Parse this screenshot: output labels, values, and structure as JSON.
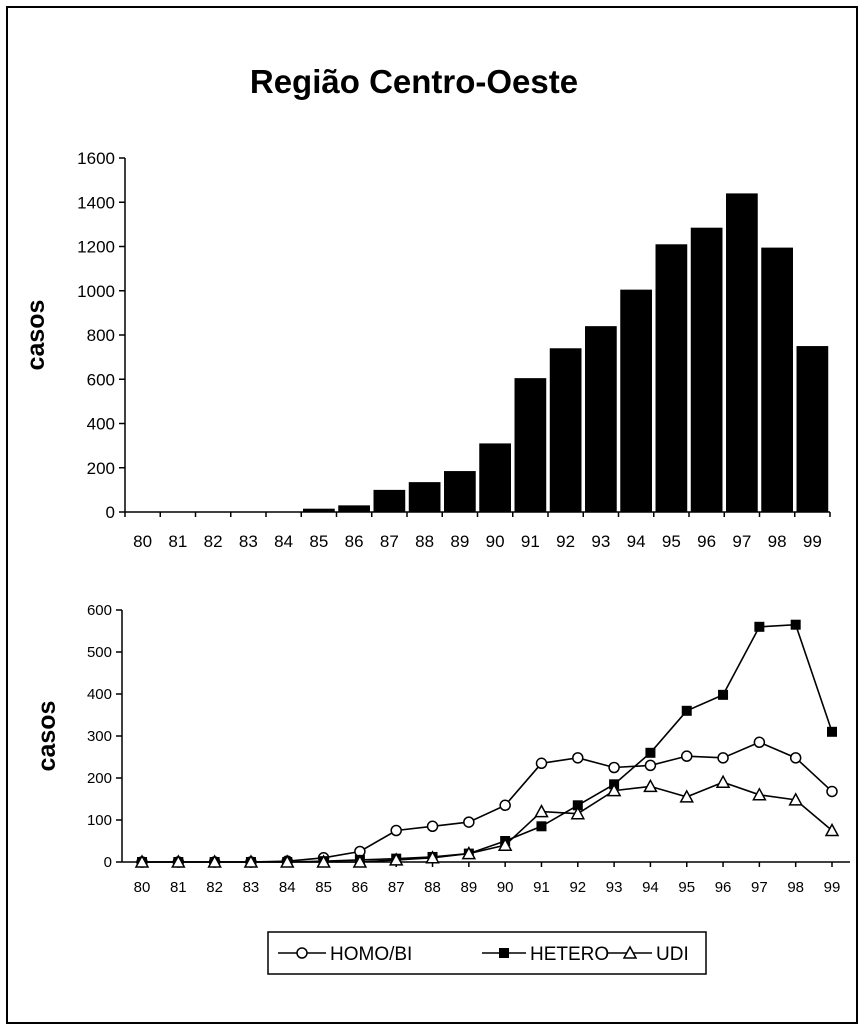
{
  "chart_data": [
    {
      "type": "bar",
      "title": "Região Centro-Oeste",
      "xlabel": "",
      "ylabel": "casos",
      "ylim": [
        0,
        1600
      ],
      "yticks": [
        "0",
        "200",
        "400",
        "600",
        "800",
        "1000",
        "1200",
        "1400",
        "1600"
      ],
      "categories": [
        "80",
        "81",
        "82",
        "83",
        "84",
        "85",
        "86",
        "87",
        "88",
        "89",
        "90",
        "91",
        "92",
        "93",
        "94",
        "95",
        "96",
        "97",
        "98",
        "99"
      ],
      "values": [
        0,
        0,
        0,
        0,
        0,
        15,
        30,
        100,
        135,
        185,
        310,
        605,
        740,
        840,
        1005,
        1210,
        1285,
        1440,
        1195,
        750
      ],
      "color": "#000000",
      "grid": false
    },
    {
      "type": "line",
      "title": "",
      "xlabel": "",
      "ylabel": "casos",
      "ylim": [
        0,
        600
      ],
      "yticks": [
        "0",
        "100",
        "200",
        "300",
        "400",
        "500",
        "600"
      ],
      "categories": [
        "80",
        "81",
        "82",
        "83",
        "84",
        "85",
        "86",
        "87",
        "88",
        "89",
        "90",
        "91",
        "92",
        "93",
        "94",
        "95",
        "96",
        "97",
        "98",
        "99"
      ],
      "series": [
        {
          "name": "HOMO/BI",
          "marker": "circle-open",
          "values": [
            0,
            0,
            0,
            0,
            2,
            10,
            25,
            75,
            85,
            95,
            135,
            235,
            248,
            225,
            230,
            252,
            248,
            285,
            248,
            168
          ]
        },
        {
          "name": "HETERO",
          "marker": "square-filled",
          "values": [
            0,
            0,
            0,
            0,
            0,
            2,
            5,
            8,
            12,
            20,
            50,
            85,
            135,
            185,
            260,
            360,
            398,
            560,
            565,
            310
          ]
        },
        {
          "name": "UDI",
          "marker": "triangle-open",
          "values": [
            0,
            0,
            0,
            0,
            0,
            0,
            0,
            5,
            10,
            20,
            40,
            120,
            115,
            170,
            180,
            155,
            190,
            160,
            148,
            75
          ]
        }
      ],
      "legend_position": "bottom-center",
      "grid": false
    }
  ]
}
